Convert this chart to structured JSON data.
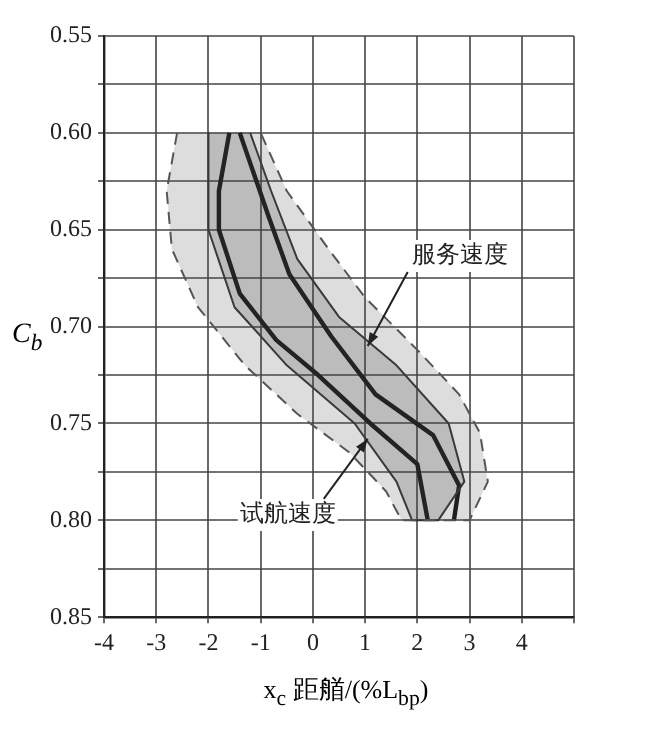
{
  "chart_data": {
    "type": "line",
    "xlabel": "x$_{c}$ 距艏/(%L$_{bp}$)",
    "ylabel": "C$_{b}$",
    "xlim": [
      -4,
      5
    ],
    "xticks": [
      -4,
      -3,
      -2,
      -1,
      0,
      1,
      2,
      3,
      4,
      {
        "value": 5,
        "label": null
      }
    ],
    "ylim": [
      0.85,
      0.55
    ],
    "yticks": [
      0.55,
      {
        "value": 0.575,
        "label": null
      },
      {
        "value": 0.6,
        "label": "0.60"
      },
      {
        "value": 0.625,
        "label": null
      },
      0.65,
      {
        "value": 0.675,
        "label": null
      },
      {
        "value": 0.7,
        "label": "0.70"
      },
      {
        "value": 0.725,
        "label": null
      },
      0.75,
      {
        "value": 0.775,
        "label": null
      },
      {
        "value": 0.8,
        "label": "0.80"
      },
      {
        "value": 0.825,
        "label": null
      },
      0.85
    ],
    "grid": true,
    "legend": false,
    "marker": "none",
    "series": [
      {
        "type": "area",
        "color": "#555555",
        "line_style": "dashed",
        "x": [
          -2.6,
          -2.8,
          -2.7,
          -2.2,
          -1.3,
          -0.3,
          0.7,
          1.4,
          1.7,
          3.0,
          3.35,
          3.2,
          2.8,
          2.0,
          1.0,
          0.3,
          -0.5,
          -1.0
        ],
        "values": [
          0.6,
          0.63,
          0.66,
          0.69,
          0.72,
          0.745,
          0.765,
          0.785,
          0.8,
          0.8,
          0.78,
          0.755,
          0.735,
          0.712,
          0.685,
          0.66,
          0.63,
          0.6
        ]
      },
      {
        "type": "area",
        "color": "#333333",
        "line_style": "solid",
        "x": [
          -2.0,
          -2.0,
          -1.5,
          -0.5,
          0.8,
          1.6,
          1.9,
          2.4,
          2.9,
          2.6,
          1.6,
          0.5,
          -0.3,
          -0.8,
          -1.2
        ],
        "values": [
          0.6,
          0.65,
          0.69,
          0.72,
          0.75,
          0.78,
          0.8,
          0.8,
          0.78,
          0.75,
          0.72,
          0.695,
          0.665,
          0.63,
          0.6
        ]
      },
      {
        "type": "line",
        "color": "#111111",
        "line_style": "solid",
        "x": [
          -1.6,
          -1.8,
          -1.8,
          -1.4,
          -0.7,
          0.1,
          1.1,
          2.0,
          2.2
        ],
        "values": [
          0.6,
          0.63,
          0.65,
          0.683,
          0.707,
          0.725,
          0.75,
          0.771,
          0.8
        ]
      },
      {
        "type": "line",
        "color": "#111111",
        "line_style": "solid",
        "x": [
          -1.4,
          -0.85,
          -0.45,
          0.35,
          1.2,
          2.3,
          2.8,
          2.7
        ],
        "values": [
          0.6,
          0.643,
          0.673,
          0.705,
          0.735,
          0.756,
          0.782,
          0.8
        ]
      }
    ],
    "annotations": [
      {
        "text": "服务速度",
        "x": 1.05,
        "y": 0.71
      },
      {
        "text": "试航速度",
        "x": 1.05,
        "y": 0.758
      }
    ]
  }
}
